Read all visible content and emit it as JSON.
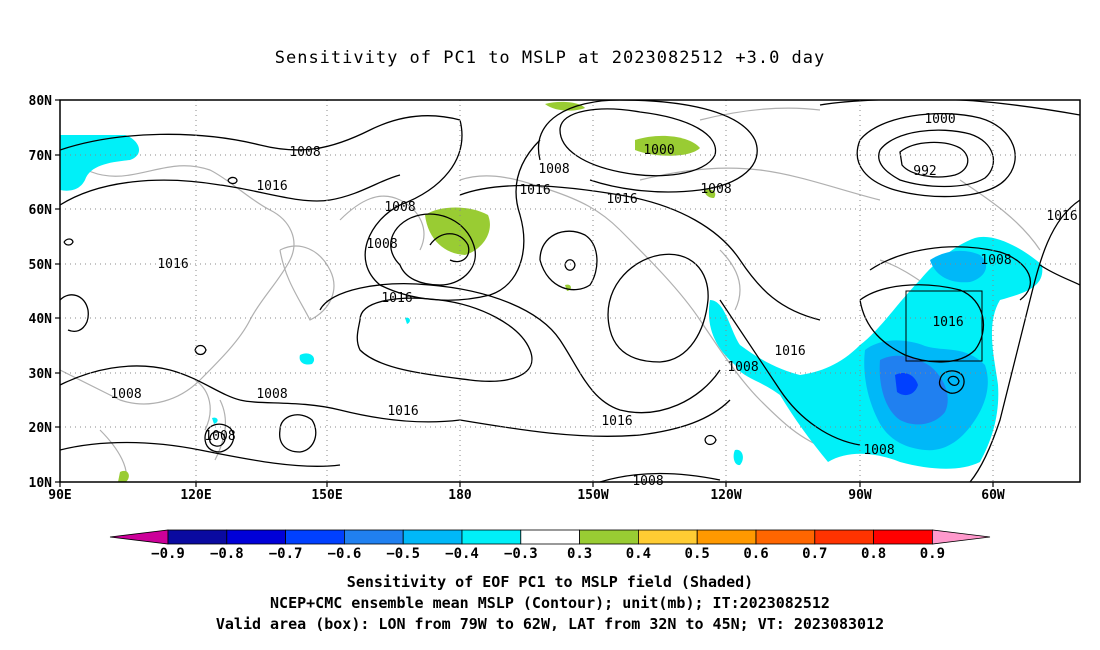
{
  "title": "Sensitivity of PC1 to MSLP at 2023082512 +3.0 day",
  "lat_labels": [
    "80N",
    "70N",
    "60N",
    "50N",
    "40N",
    "30N",
    "20N",
    "10N"
  ],
  "lon_labels": [
    "90E",
    "120E",
    "150E",
    "180",
    "150W",
    "120W",
    "90W",
    "60W"
  ],
  "contour_labels": [
    "1008",
    "1016",
    "1008",
    "1008",
    "1016",
    "1008",
    "1016",
    "1000",
    "1008",
    "1016",
    "1008",
    "1016",
    "1016",
    "1016",
    "1008",
    "1016",
    "1008",
    "1000",
    "992",
    "1016",
    "1008",
    "1016",
    "1008",
    "1008",
    "1008"
  ],
  "colorbar": {
    "ticks": [
      "−0.9",
      "−0.8",
      "−0.7",
      "−0.6",
      "−0.5",
      "−0.4",
      "−0.3",
      "0.3",
      "0.4",
      "0.5",
      "0.6",
      "0.7",
      "0.8",
      "0.9"
    ],
    "colors": [
      "#cc0099",
      "#0a0aa0",
      "#0000d8",
      "#0040ff",
      "#2080f0",
      "#00b8f8",
      "#00f0f8",
      "#ffffff",
      "#99cc33",
      "#ffcc33",
      "#ff9900",
      "#ff6600",
      "#ff3300",
      "#ff0000",
      "#ff99cc"
    ]
  },
  "captions": [
    "Sensitivity of EOF PC1 to MSLP field (Shaded)",
    "NCEP+CMC ensemble mean MSLP (Contour); unit(mb); IT:2023082512",
    "Valid area (box): LON from 79W to 62W, LAT from 32N to 45N; VT: 2023083012"
  ]
}
